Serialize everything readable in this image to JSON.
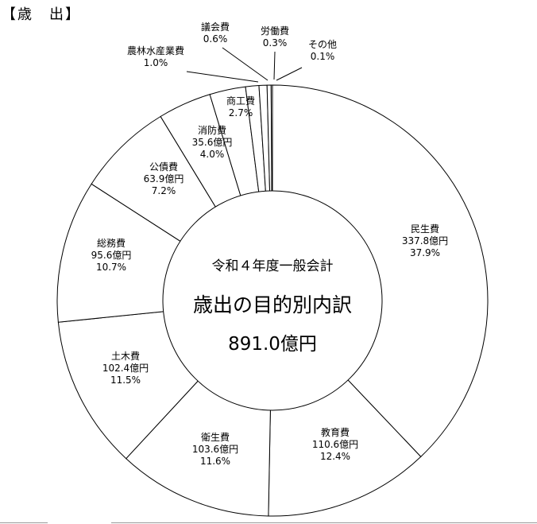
{
  "header": {
    "section_title": "【歳　出】"
  },
  "chart_data": {
    "type": "pie",
    "variant": "donut",
    "title": "",
    "center_text": {
      "line1": "令和４年度一般会計",
      "line2": "歳出の目的別内訳",
      "line3": "891.0億円"
    },
    "unit": "億円",
    "total": 891.0,
    "slices": [
      {
        "name": "民生費",
        "amount": "337.8億円",
        "value": 37.9,
        "percent": "37.9%"
      },
      {
        "name": "教育費",
        "amount": "110.6億円",
        "value": 12.4,
        "percent": "12.4%"
      },
      {
        "name": "衛生費",
        "amount": "103.6億円",
        "value": 11.6,
        "percent": "11.6%"
      },
      {
        "name": "土木費",
        "amount": "102.4億円",
        "value": 11.5,
        "percent": "11.5%"
      },
      {
        "name": "総務費",
        "amount": "95.6億円",
        "value": 10.7,
        "percent": "10.7%"
      },
      {
        "name": "公債費",
        "amount": "63.9億円",
        "value": 7.2,
        "percent": "7.2%"
      },
      {
        "name": "消防費",
        "amount": "35.6億円",
        "value": 4.0,
        "percent": "4.0%"
      },
      {
        "name": "商工費",
        "amount": "",
        "value": 2.7,
        "percent": "2.7%"
      },
      {
        "name": "農林水産業費",
        "amount": "",
        "value": 1.0,
        "percent": "1.0%"
      },
      {
        "name": "議会費",
        "amount": "",
        "value": 0.6,
        "percent": "0.6%"
      },
      {
        "name": "労働費",
        "amount": "",
        "value": 0.3,
        "percent": "0.3%"
      },
      {
        "name": "その他",
        "amount": "",
        "value": 0.1,
        "percent": "0.1%"
      }
    ],
    "start": "top",
    "direction": "clockwise",
    "colors": {
      "fill": "#ffffff",
      "stroke": "#000000"
    }
  }
}
